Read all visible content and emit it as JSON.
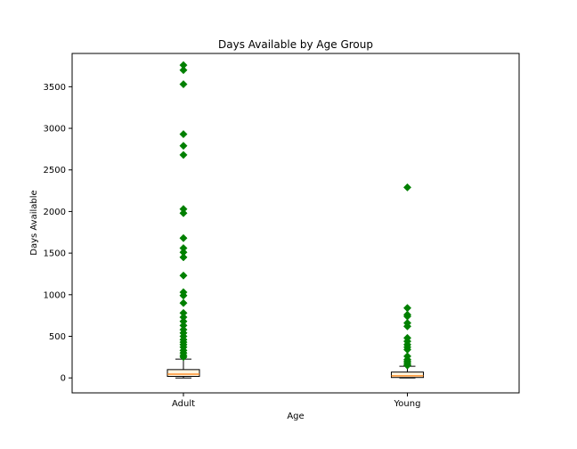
{
  "chart_data": {
    "type": "box",
    "title": "Days Available by Age Group",
    "xlabel": "Age",
    "ylabel": "Days Available",
    "categories": [
      "Adult",
      "Young"
    ],
    "ylim": [
      -180,
      3900
    ],
    "yticks": [
      0,
      500,
      1000,
      1500,
      2000,
      2500,
      3000,
      3500
    ],
    "grid": false,
    "boxes": [
      {
        "category": "Adult",
        "min": 0,
        "q1": 18,
        "median": 45,
        "q3": 100,
        "max": 225,
        "outliers": [
          3760,
          3700,
          3530,
          2930,
          2790,
          2680,
          2030,
          1980,
          1680,
          1560,
          1510,
          1450,
          1230,
          1030,
          990,
          900,
          780,
          730,
          680,
          630,
          580,
          540,
          500,
          460,
          430,
          400,
          370,
          330,
          300,
          270,
          250
        ]
      },
      {
        "category": "Young",
        "min": 0,
        "q1": 5,
        "median": 25,
        "q3": 70,
        "max": 140,
        "outliers": [
          2290,
          840,
          760,
          740,
          660,
          620,
          480,
          440,
          400,
          370,
          340,
          260,
          220,
          200,
          180,
          160,
          150
        ]
      }
    ],
    "colors": {
      "box_fill": "#fff5e0",
      "box_edge": "#000000",
      "median": "#ff7f0e",
      "outlier": "#008000"
    },
    "marker": "diamond"
  }
}
